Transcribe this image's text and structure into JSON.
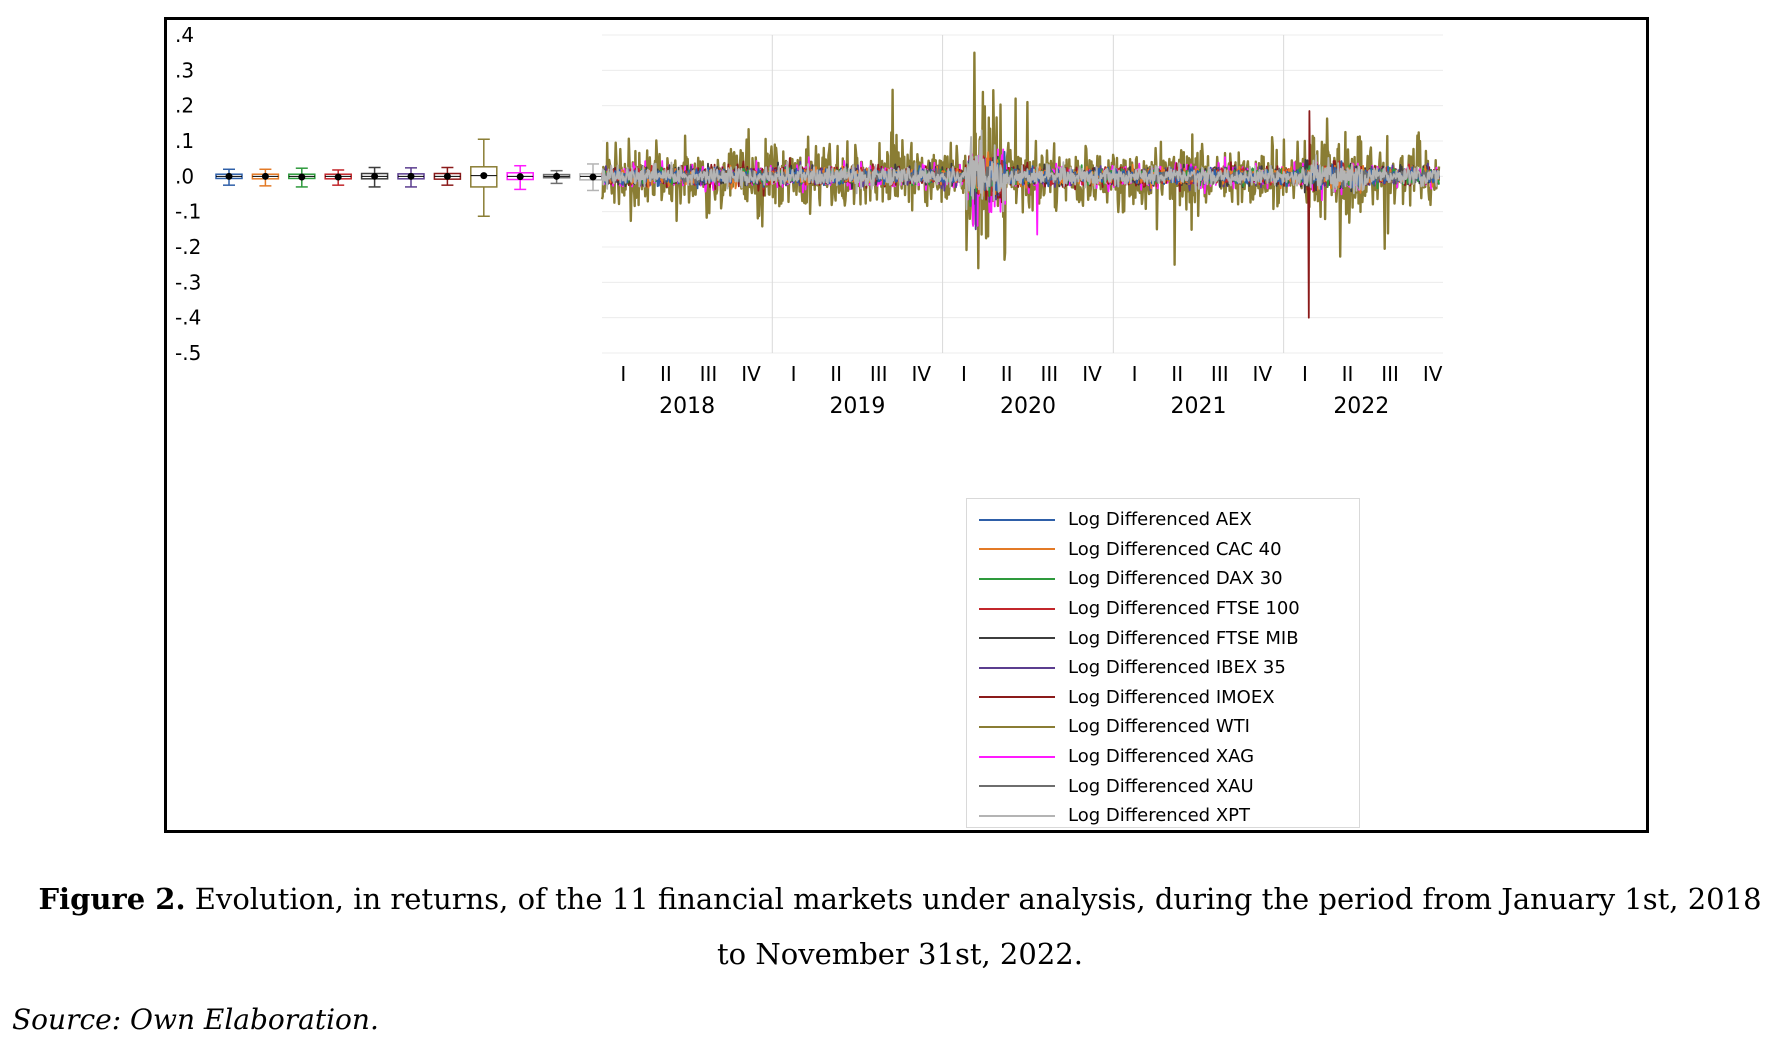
{
  "figure": {
    "caption_lead": "Figure 2.",
    "caption_text": "Evolution, in returns, of the 11 financial markets under analysis, during the period from January 1st, 2018 to November 31st, 2022.",
    "source": "Source: Own Elaboration."
  },
  "chart_data": {
    "type": "line",
    "title": "",
    "xlabel": "",
    "ylabel": "",
    "ylim": [
      -0.5,
      0.4
    ],
    "yticks": [
      ".4",
      ".3",
      ".2",
      ".1",
      ".0",
      "-.1",
      "-.2",
      "-.3",
      "-.4",
      "-.5"
    ],
    "ytick_values": [
      0.4,
      0.3,
      0.2,
      0.1,
      0.0,
      -0.1,
      -0.2,
      -0.3,
      -0.4,
      -0.5
    ],
    "x_range": [
      "2018-01-01",
      "2022-11-30"
    ],
    "years": [
      "2018",
      "2019",
      "2020",
      "2021",
      "2022"
    ],
    "quarters": [
      "I",
      "II",
      "III",
      "IV"
    ],
    "grid": "vertical lines at year boundaries",
    "legend_position": "bottom-center",
    "series": [
      {
        "name": "Log Differenced AEX",
        "color": "#2e5fa8",
        "box": {
          "min": -0.025,
          "q1": -0.006,
          "median": 0.0,
          "q3": 0.006,
          "max": 0.02,
          "mean": 0.0
        }
      },
      {
        "name": "Log Differenced CAC 40",
        "color": "#e37a26",
        "box": {
          "min": -0.027,
          "q1": -0.007,
          "median": 0.0,
          "q3": 0.006,
          "max": 0.02,
          "mean": 0.0
        }
      },
      {
        "name": "Log Differenced DAX 30",
        "color": "#2e9a3c",
        "box": {
          "min": -0.03,
          "q1": -0.006,
          "median": 0.0,
          "q3": 0.006,
          "max": 0.023,
          "mean": -0.002
        }
      },
      {
        "name": "Log Differenced FTSE 100",
        "color": "#c2262b",
        "box": {
          "min": -0.025,
          "q1": -0.007,
          "median": 0.0,
          "q3": 0.006,
          "max": 0.018,
          "mean": -0.002
        }
      },
      {
        "name": "Log Differenced FTSE MIB",
        "color": "#3d3d3d",
        "box": {
          "min": -0.03,
          "q1": -0.007,
          "median": 0.0,
          "q3": 0.008,
          "max": 0.025,
          "mean": 0.0
        }
      },
      {
        "name": "Log Differenced IBEX 35",
        "color": "#5b3d8f",
        "box": {
          "min": -0.03,
          "q1": -0.007,
          "median": 0.0,
          "q3": 0.007,
          "max": 0.024,
          "mean": 0.0
        }
      },
      {
        "name": "Log Differenced IMOEX",
        "color": "#8b1a1a",
        "box": {
          "min": -0.025,
          "q1": -0.008,
          "median": 0.0,
          "q3": 0.008,
          "max": 0.025,
          "mean": 0.0
        }
      },
      {
        "name": "Log Differenced WTI",
        "color": "#8a7d34",
        "box": {
          "min": -0.113,
          "q1": -0.03,
          "median": 0.002,
          "q3": 0.027,
          "max": 0.105,
          "mean": 0.002
        }
      },
      {
        "name": "Log Differenced XAG",
        "color": "#ff1aff",
        "box": {
          "min": -0.037,
          "q1": -0.009,
          "median": 0.0,
          "q3": 0.01,
          "max": 0.03,
          "mean": -0.001
        }
      },
      {
        "name": "Log Differenced XAU",
        "color": "#6e6e6e",
        "box": {
          "min": -0.02,
          "q1": -0.004,
          "median": 0.0,
          "q3": 0.005,
          "max": 0.016,
          "mean": 0.0
        }
      },
      {
        "name": "Log Differenced XPT",
        "color": "#b4b4b4",
        "box": {
          "min": -0.04,
          "q1": -0.01,
          "median": 0.0,
          "q3": 0.007,
          "max": 0.035,
          "mean": -0.002
        }
      }
    ],
    "notable_extremes": [
      {
        "series": "Log Differenced WTI",
        "date": "2020-03-09",
        "value": 0.35
      },
      {
        "series": "Log Differenced WTI",
        "date": "2020-03-18",
        "value": -0.26
      },
      {
        "series": "Log Differenced WTI",
        "date": "2019-09-16",
        "value": 0.245
      },
      {
        "series": "Log Differenced WTI",
        "date": "2021-05-12",
        "value": -0.25
      },
      {
        "series": "Log Differenced WTI",
        "date": "2020-06-05",
        "value": 0.22
      },
      {
        "series": "Log Differenced WTI",
        "date": "2020-07-01",
        "value": 0.21
      },
      {
        "series": "Log Differenced WTI",
        "date": "2022-08-05",
        "value": -0.205
      },
      {
        "series": "Log Differenced IMOEX",
        "date": "2022-02-24",
        "value": -0.4
      },
      {
        "series": "Log Differenced IMOEX",
        "date": "2022-02-25",
        "value": 0.185
      },
      {
        "series": "Log Differenced XAG",
        "date": "2020-03-16",
        "value": -0.14
      },
      {
        "series": "Log Differenced XAG",
        "date": "2020-07-22",
        "value": -0.165
      },
      {
        "series": "Log Differenced IBEX 35",
        "date": "2020-03-12",
        "value": -0.15
      },
      {
        "series": "Log Differenced XPT",
        "date": "2020-03-24",
        "value": 0.13
      }
    ]
  }
}
